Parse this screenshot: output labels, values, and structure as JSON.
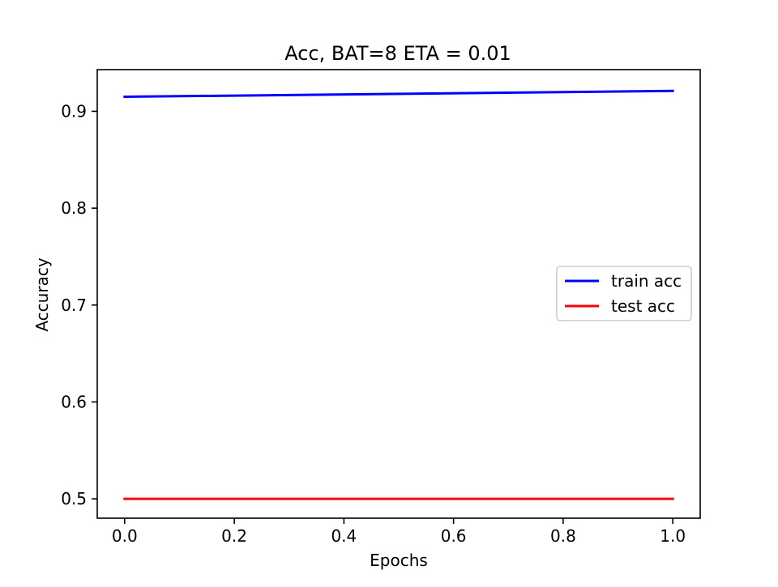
{
  "chart_data": {
    "type": "line",
    "title": "Acc, BAT=8 ETA = 0.01",
    "xlabel": "Epochs",
    "ylabel": "Accuracy",
    "x": [
      0.0,
      1.0
    ],
    "xlim": [
      -0.05,
      1.05
    ],
    "ylim": [
      0.48,
      0.943
    ],
    "xticks": [
      0.0,
      0.2,
      0.4,
      0.6,
      0.8,
      1.0
    ],
    "xtick_labels": [
      "0.0",
      "0.2",
      "0.4",
      "0.6",
      "0.8",
      "1.0"
    ],
    "yticks": [
      0.5,
      0.6,
      0.7,
      0.8,
      0.9
    ],
    "ytick_labels": [
      "0.5",
      "0.6",
      "0.7",
      "0.8",
      "0.9"
    ],
    "grid": false,
    "legend_position": "center right",
    "series": [
      {
        "name": "train acc",
        "color": "#0000ff",
        "values": [
          0.915,
          0.921
        ]
      },
      {
        "name": "test acc",
        "color": "#ff0000",
        "values": [
          0.5,
          0.5
        ]
      }
    ]
  }
}
